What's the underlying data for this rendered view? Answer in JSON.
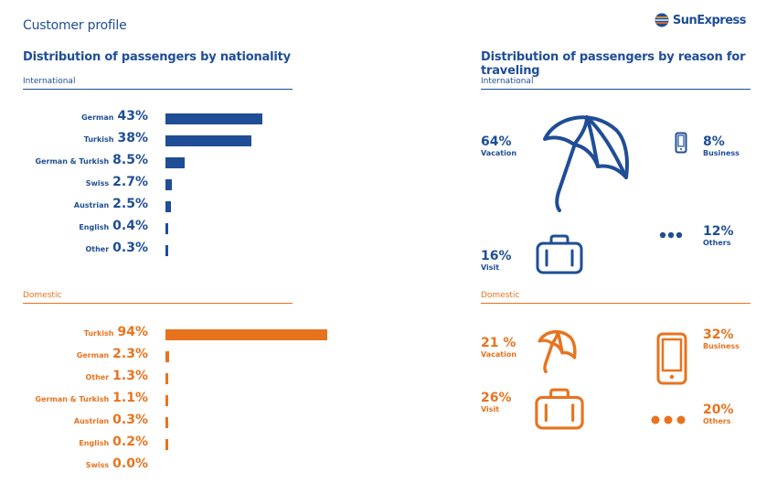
{
  "header": {
    "page_title": "Customer profile",
    "logo_text": "SunExpress",
    "logo_icon": "sun-stripes-logo"
  },
  "colors": {
    "international": "#1f4e96",
    "domestic": "#e8731f"
  },
  "nationality": {
    "title": "Distribution of passengers by nationality",
    "international_label": "International",
    "domestic_label": "Domestic"
  },
  "reason": {
    "title": "Distribution of passengers by reason for traveling",
    "international_label": "International",
    "domestic_label": "Domestic",
    "international": [
      {
        "pct": "64%",
        "label": "Vacation",
        "icon": "umbrella-icon"
      },
      {
        "pct": "8%",
        "label": "Business",
        "icon": "phone-icon"
      },
      {
        "pct": "16%",
        "label": "Visit",
        "icon": "suitcase-icon"
      },
      {
        "pct": "12%",
        "label": "Others",
        "icon": "dots-icon"
      }
    ],
    "domestic": [
      {
        "pct": "21 %",
        "label": "Vacation",
        "icon": "umbrella-icon"
      },
      {
        "pct": "32%",
        "label": "Business",
        "icon": "phone-icon"
      },
      {
        "pct": "26%",
        "label": "Visit",
        "icon": "suitcase-icon"
      },
      {
        "pct": "20%",
        "label": "Others",
        "icon": "dots-icon"
      }
    ]
  },
  "chart_data": [
    {
      "type": "bar",
      "orientation": "horizontal",
      "title": "International",
      "categories": [
        "German",
        "Turkish",
        "German & Turkish",
        "Swiss",
        "Austrian",
        "English",
        "Other"
      ],
      "values": [
        43,
        38,
        8.5,
        2.7,
        2.5,
        0.4,
        0.3
      ],
      "labels": [
        "43%",
        "38%",
        "8.5%",
        "2.7%",
        "2.5%",
        "0.4%",
        "0.3%"
      ],
      "unit": "%"
    },
    {
      "type": "bar",
      "orientation": "horizontal",
      "title": "Domestic",
      "categories": [
        "Turkish",
        "German",
        "Other",
        "German & Turkish",
        "Austrian",
        "English",
        "Swiss"
      ],
      "values": [
        94,
        2.3,
        1.3,
        1.1,
        0.3,
        0.2,
        0.0
      ],
      "labels": [
        "94%",
        "2.3%",
        "1.3%",
        "1.1%",
        "0.3%",
        "0.2%",
        "0.0%"
      ],
      "unit": "%"
    },
    {
      "type": "table",
      "title": "International",
      "categories": [
        "Vacation",
        "Business",
        "Visit",
        "Others"
      ],
      "values": [
        64,
        8,
        16,
        12
      ],
      "unit": "%"
    },
    {
      "type": "table",
      "title": "Domestic",
      "categories": [
        "Vacation",
        "Business",
        "Visit",
        "Others"
      ],
      "values": [
        21,
        32,
        26,
        20
      ],
      "unit": "%"
    }
  ]
}
